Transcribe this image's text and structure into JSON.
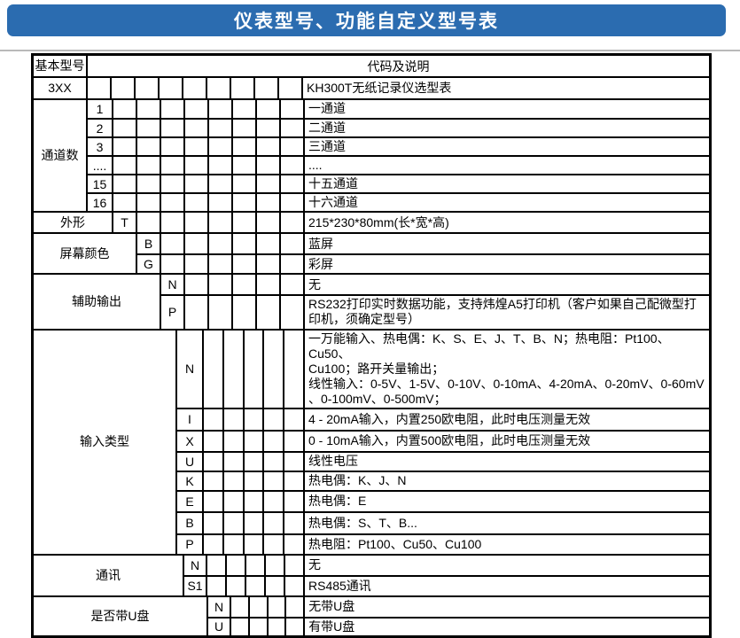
{
  "banner": {
    "title": "仪表型号、功能自定义型号表"
  },
  "colors": {
    "banner_bg": "#2b6cb0",
    "banner_text": "#ffffff",
    "table_border": "#000000",
    "rule": "#b9b9b9"
  },
  "table": {
    "header": {
      "basic_model": "基本型号",
      "code_desc": "代码及说明"
    },
    "sections": [
      {
        "name": "base-model",
        "label": "3XX",
        "rows": [
          {
            "code": "",
            "desc": "KH300T无纸记录仪选型表"
          }
        ]
      },
      {
        "name": "channel-count",
        "label": "通道数",
        "rows": [
          {
            "code": "1",
            "desc": "一通道"
          },
          {
            "code": "2",
            "desc": "二通道"
          },
          {
            "code": "3",
            "desc": "三通道"
          },
          {
            "code": "....",
            "desc": "...."
          },
          {
            "code": "15",
            "desc": "十五通道"
          },
          {
            "code": "16",
            "desc": "十六通道"
          }
        ]
      },
      {
        "name": "shape",
        "label": "外形",
        "rows": [
          {
            "code": "T",
            "desc": "215*230*80mm(长*宽*高)"
          }
        ]
      },
      {
        "name": "screen-color",
        "label": "屏幕颜色",
        "rows": [
          {
            "code": "B",
            "desc": "蓝屏"
          },
          {
            "code": "G",
            "desc": "彩屏"
          }
        ]
      },
      {
        "name": "aux-output",
        "label": "辅助输出",
        "rows": [
          {
            "code": "N",
            "desc": "无"
          },
          {
            "code": "P",
            "desc": "RS232打印实时数据功能，支持炜煌A5打印机（客户如果自己配微型打印机，须确定型号）"
          }
        ]
      },
      {
        "name": "input-type",
        "label": "输入类型",
        "rows": [
          {
            "code": "N",
            "desc": "一万能输入、热电偶：K、S、E、J、T、B、N；热电阻：Pt100、Cu50、\nCu100；路开关量输出；\n线性输入：0-5V、1-5V、0-10V、0-10mA、4-20mA、0-20mV、0-60mV\n、0-100mV、0-500mV；"
          },
          {
            "code": "I",
            "desc": "4 - 20mA输入，内置250欧电阻，此时电压测量无效"
          },
          {
            "code": "X",
            "desc": "0 - 10mA输入，内置500欧电阻，此时电压测量无效"
          },
          {
            "code": "U",
            "desc": "线性电压"
          },
          {
            "code": "K",
            "desc": "热电偶：K、J、N"
          },
          {
            "code": "E",
            "desc": "热电偶：E"
          },
          {
            "code": "B",
            "desc": "热电偶：S、T、B..."
          },
          {
            "code": "P",
            "desc": "热电阻：Pt100、Cu50、Cu100"
          }
        ]
      },
      {
        "name": "communication",
        "label": "通讯",
        "rows": [
          {
            "code": "N",
            "desc": "无"
          },
          {
            "code": "S1",
            "desc": "RS485通讯"
          }
        ]
      },
      {
        "name": "usb-disk",
        "label": "是否带U盘",
        "rows": [
          {
            "code": "N",
            "desc": "无带U盘"
          },
          {
            "code": "U",
            "desc": "有带U盘"
          }
        ]
      }
    ]
  }
}
